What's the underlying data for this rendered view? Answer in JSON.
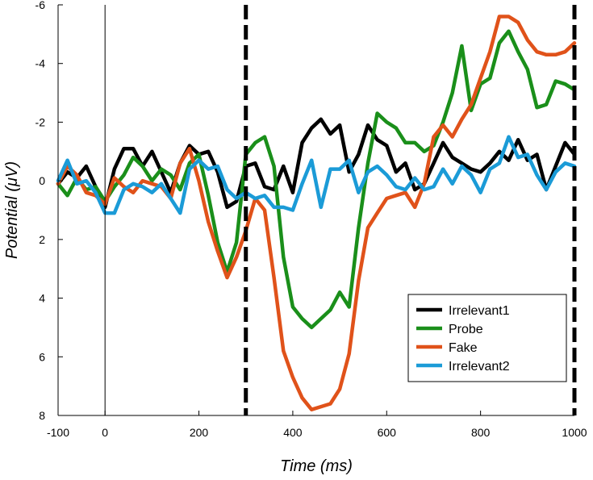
{
  "chart_data": {
    "type": "line",
    "title": "",
    "xlabel": "Time (ms)",
    "ylabel": "Potential (μV)",
    "xlim": [
      -100,
      1000
    ],
    "ylim": [
      -6,
      8
    ],
    "y_inverted": true,
    "xticks": [
      -100,
      0,
      200,
      400,
      600,
      800,
      1000
    ],
    "yticks": [
      -6,
      -4,
      -2,
      0,
      2,
      4,
      6,
      8
    ],
    "xtick_labels": [
      "-100",
      "0",
      "200",
      "400",
      "600",
      "800",
      "1000"
    ],
    "ytick_labels": [
      "-6",
      "-4",
      "-2",
      "0",
      "2",
      "4",
      "6",
      "8"
    ],
    "vlines_solid": [
      0
    ],
    "vlines_dashed": [
      300,
      1000
    ],
    "grid": false,
    "legend_position": "bottom-right",
    "series": [
      {
        "name": "Irrelevant1",
        "color": "#000000",
        "x": [
          -100,
          -80,
          -60,
          -40,
          -20,
          0,
          20,
          40,
          60,
          80,
          100,
          120,
          140,
          160,
          180,
          200,
          220,
          240,
          260,
          280,
          300,
          320,
          340,
          360,
          380,
          400,
          420,
          440,
          460,
          480,
          500,
          520,
          540,
          560,
          580,
          600,
          620,
          640,
          660,
          680,
          700,
          720,
          740,
          760,
          780,
          800,
          820,
          840,
          860,
          880,
          900,
          920,
          940,
          960,
          980,
          1000
        ],
        "values": [
          0.1,
          -0.3,
          -0.1,
          -0.5,
          0.2,
          0.9,
          -0.4,
          -1.1,
          -1.1,
          -0.5,
          -1.0,
          -0.3,
          0.4,
          -0.6,
          -1.2,
          -0.9,
          -1.0,
          -0.3,
          0.9,
          0.7,
          -0.5,
          -0.6,
          0.2,
          0.3,
          -0.5,
          0.4,
          -1.3,
          -1.8,
          -2.1,
          -1.6,
          -1.9,
          -0.3,
          -0.9,
          -1.9,
          -1.4,
          -1.2,
          -0.3,
          -0.6,
          0.3,
          0.1,
          -0.6,
          -1.3,
          -0.8,
          -0.6,
          -0.4,
          -0.3,
          -0.6,
          -1.0,
          -0.7,
          -1.4,
          -0.7,
          -0.9,
          0.3,
          -0.5,
          -1.3,
          -0.9
        ]
      },
      {
        "name": "Probe",
        "color": "#1a8f1a",
        "x": [
          -100,
          -80,
          -60,
          -40,
          -20,
          0,
          20,
          40,
          60,
          80,
          100,
          120,
          140,
          160,
          180,
          200,
          220,
          240,
          260,
          280,
          300,
          320,
          340,
          360,
          380,
          400,
          420,
          440,
          460,
          480,
          500,
          520,
          540,
          560,
          580,
          600,
          620,
          640,
          660,
          680,
          700,
          720,
          740,
          760,
          780,
          800,
          820,
          840,
          860,
          880,
          900,
          920,
          940,
          960,
          980,
          1000
        ],
        "values": [
          0.1,
          0.5,
          -0.1,
          0.3,
          0.2,
          0.7,
          0.2,
          -0.2,
          -0.8,
          -0.5,
          0.0,
          -0.4,
          -0.2,
          0.3,
          -0.6,
          -0.9,
          0.5,
          2.1,
          3.1,
          2.1,
          -0.9,
          -1.3,
          -1.5,
          -0.5,
          2.6,
          4.3,
          4.7,
          5.0,
          4.7,
          4.4,
          3.8,
          4.3,
          1.6,
          -0.6,
          -2.3,
          -2.0,
          -1.8,
          -1.3,
          -1.3,
          -1.0,
          -1.2,
          -2.0,
          -3.0,
          -4.6,
          -2.4,
          -3.3,
          -3.5,
          -4.7,
          -5.1,
          -4.4,
          -3.8,
          -2.5,
          -2.6,
          -3.4,
          -3.3,
          -3.1
        ]
      },
      {
        "name": "Fake",
        "color": "#e0521a",
        "x": [
          -100,
          -80,
          -60,
          -40,
          -20,
          0,
          20,
          40,
          60,
          80,
          100,
          120,
          140,
          160,
          180,
          200,
          220,
          240,
          260,
          280,
          300,
          320,
          340,
          360,
          380,
          400,
          420,
          440,
          460,
          480,
          500,
          520,
          540,
          560,
          580,
          600,
          620,
          640,
          660,
          680,
          700,
          720,
          740,
          760,
          780,
          800,
          820,
          840,
          860,
          880,
          900,
          920,
          940,
          960,
          980,
          1000
        ],
        "values": [
          0.1,
          -0.5,
          -0.2,
          0.4,
          0.5,
          0.8,
          -0.1,
          0.2,
          0.4,
          0.0,
          0.1,
          0.2,
          0.6,
          -0.6,
          -1.1,
          0.0,
          1.4,
          2.4,
          3.3,
          2.6,
          1.7,
          0.6,
          1.0,
          3.3,
          5.8,
          6.7,
          7.4,
          7.8,
          7.7,
          7.6,
          7.1,
          5.9,
          3.4,
          1.6,
          1.1,
          0.6,
          0.5,
          0.4,
          0.9,
          0.1,
          -1.5,
          -1.9,
          -1.5,
          -2.1,
          -2.6,
          -3.5,
          -4.4,
          -5.6,
          -5.6,
          -5.4,
          -4.8,
          -4.4,
          -4.3,
          -4.3,
          -4.4,
          -4.7
        ]
      },
      {
        "name": "Irrelevant2",
        "color": "#1b9bd7",
        "x": [
          -100,
          -80,
          -60,
          -40,
          -20,
          0,
          20,
          40,
          60,
          80,
          100,
          120,
          140,
          160,
          180,
          200,
          220,
          240,
          260,
          280,
          300,
          320,
          340,
          360,
          380,
          400,
          420,
          440,
          460,
          480,
          500,
          520,
          540,
          560,
          580,
          600,
          620,
          640,
          660,
          680,
          700,
          720,
          740,
          760,
          780,
          800,
          820,
          840,
          860,
          880,
          900,
          920,
          940,
          960,
          980,
          1000
        ],
        "values": [
          0.0,
          -0.7,
          0.1,
          0.0,
          0.4,
          1.1,
          1.1,
          0.3,
          0.1,
          0.2,
          0.4,
          0.1,
          0.6,
          1.1,
          -0.4,
          -0.7,
          -0.4,
          -0.5,
          0.3,
          0.6,
          0.4,
          0.6,
          0.5,
          0.9,
          0.9,
          1.0,
          0.1,
          -0.7,
          0.9,
          -0.4,
          -0.4,
          -0.7,
          0.4,
          -0.3,
          -0.5,
          -0.2,
          0.2,
          0.3,
          -0.1,
          0.3,
          0.2,
          -0.4,
          0.1,
          -0.5,
          -0.2,
          0.4,
          -0.4,
          -0.6,
          -1.5,
          -0.8,
          -0.9,
          -0.2,
          0.3,
          -0.3,
          -0.6,
          -0.5
        ]
      }
    ]
  }
}
